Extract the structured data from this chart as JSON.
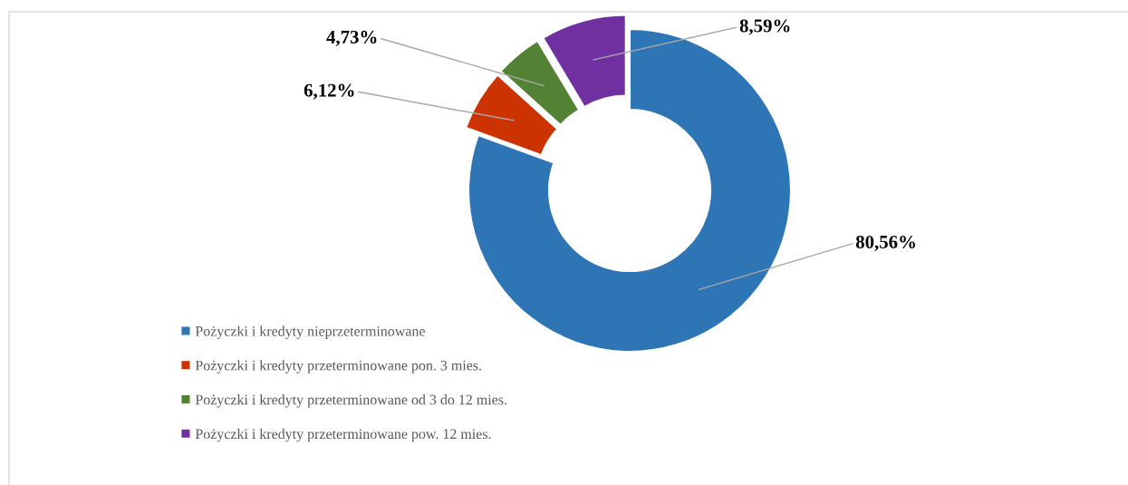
{
  "chart_data": {
    "type": "donut",
    "categories": [
      "Pożyczki i kredyty nieprzeterminowane",
      "Pożyczki i kredyty przeterminowane pon. 3 mies.",
      "Pożyczki i kredyty przeterminowane od 3 do 12 mies.",
      "Pożyczki i kredyty przeterminowane pow. 12 mies."
    ],
    "values": [
      80.56,
      6.12,
      4.73,
      8.59
    ],
    "colors": [
      "#2e75b6",
      "#cc3300",
      "#548235",
      "#7030a0"
    ],
    "value_labels": [
      "80,56%",
      "6,12%",
      "4,73%",
      "8,59%"
    ],
    "legend": "bottom left"
  }
}
